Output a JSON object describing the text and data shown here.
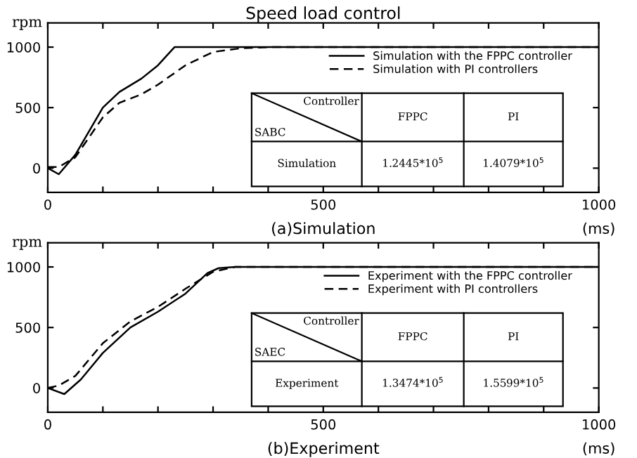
{
  "chart_data": [
    {
      "type": "line",
      "title": "Speed load control",
      "ylabel": "rpm",
      "xlabel": "(ms)",
      "legend": "top right",
      "grid": false,
      "marker": "none",
      "annotations": [
        "(a)Simulation",
        "Controller",
        "SABC",
        "FPPC",
        "PI",
        "Simulation",
        "1.2445*10$^{5}$",
        "1.4079*10$^{5}$"
      ],
      "xlim": [
        0,
        1000
      ],
      "ylim": [
        -200,
        1200
      ],
      "xticks": [
        0,
        {
          "value": 100,
          "label": null
        },
        {
          "value": 200,
          "label": null
        },
        {
          "value": 300,
          "label": null
        },
        {
          "value": 400,
          "label": null
        },
        500,
        {
          "value": 600,
          "label": null
        },
        {
          "value": 700,
          "label": null
        },
        {
          "value": 800,
          "label": null
        },
        {
          "value": 900,
          "label": null
        },
        1000
      ],
      "yticks": [
        0,
        500,
        1000
      ],
      "series": [
        {
          "name": "Simulation with the FPPC controller",
          "color": "#000000",
          "line_style": "solid",
          "x": [
            0,
            20,
            50,
            100,
            130,
            170,
            200,
            230,
            1000
          ],
          "values": [
            0,
            -50,
            110,
            500,
            630,
            740,
            850,
            1000,
            1000
          ]
        },
        {
          "name": "Simulation with PI controllers",
          "color": "#000000",
          "line_style": "dashed",
          "x": [
            0,
            20,
            50,
            100,
            130,
            170,
            200,
            250,
            300,
            350,
            400,
            1000
          ],
          "values": [
            10,
            10,
            90,
            420,
            540,
            610,
            690,
            850,
            960,
            990,
            1000,
            1000
          ]
        }
      ]
    },
    {
      "type": "line",
      "ylabel": "rpm",
      "xlabel": "(ms)",
      "legend": "top right",
      "grid": false,
      "marker": "none",
      "annotations": [
        "(b)Experiment",
        "Controller",
        "SAEC",
        "FPPC",
        "PI",
        "Experiment",
        "1.3474*10$^{5}$",
        "1.5599*10$^{5}$"
      ],
      "xlim": [
        0,
        1000
      ],
      "ylim": [
        -200,
        1200
      ],
      "xticks": [
        0,
        {
          "value": 100,
          "label": null
        },
        {
          "value": 200,
          "label": null
        },
        {
          "value": 300,
          "label": null
        },
        {
          "value": 400,
          "label": null
        },
        500,
        {
          "value": 600,
          "label": null
        },
        {
          "value": 700,
          "label": null
        },
        {
          "value": 800,
          "label": null
        },
        {
          "value": 900,
          "label": null
        },
        1000
      ],
      "yticks": [
        0,
        500,
        1000
      ],
      "series": [
        {
          "name": "Experiment with the FPPC controller",
          "color": "#000000",
          "line_style": "solid",
          "x": [
            0,
            30,
            60,
            100,
            150,
            200,
            250,
            290,
            310,
            340,
            1000
          ],
          "values": [
            0,
            -50,
            70,
            290,
            500,
            630,
            780,
            950,
            990,
            1000,
            1000
          ]
        },
        {
          "name": "Experiment with PI controllers",
          "color": "#000000",
          "line_style": "dashed",
          "x": [
            0,
            20,
            50,
            100,
            150,
            200,
            250,
            300,
            340,
            1000
          ],
          "values": [
            0,
            20,
            100,
            370,
            550,
            670,
            820,
            960,
            1000,
            1000
          ]
        }
      ]
    }
  ]
}
